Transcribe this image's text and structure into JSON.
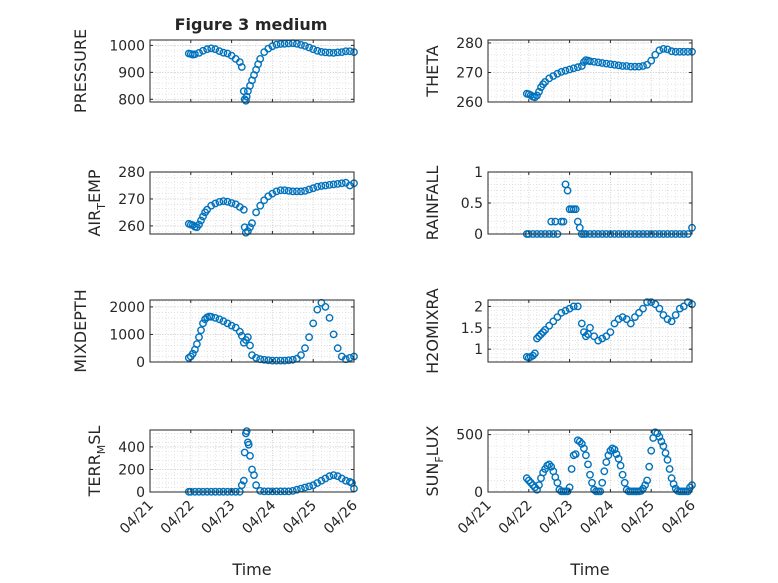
{
  "figure": {
    "title": "Figure 3 medium",
    "shared_xlabel": "Time",
    "marker_color": "#0072BD",
    "grid_color": "#d9d9d9"
  },
  "chart_data": [
    {
      "type": "scatter",
      "ylabel": "PRESSURE",
      "ylabel_sub": "",
      "ylabel_tail": "",
      "title": "Figure 3 medium",
      "xlabel": "",
      "grid": true,
      "ylim": [
        790,
        1020
      ],
      "yticks": [
        800,
        900,
        1000
      ],
      "xlim": [
        0,
        5
      ],
      "xticks": [
        0,
        1,
        2,
        3,
        4,
        5
      ],
      "xticklabels": [],
      "x": [
        0.95,
        1.0,
        1.05,
        1.1,
        1.2,
        1.3,
        1.4,
        1.5,
        1.6,
        1.7,
        1.8,
        1.9,
        2.0,
        2.1,
        2.2,
        2.25,
        2.3,
        2.32,
        2.35,
        2.37,
        2.4,
        2.45,
        2.5,
        2.55,
        2.6,
        2.65,
        2.7,
        2.8,
        2.9,
        3.0,
        3.1,
        3.2,
        3.3,
        3.4,
        3.5,
        3.6,
        3.7,
        3.8,
        3.9,
        4.0,
        4.1,
        4.2,
        4.3,
        4.4,
        4.5,
        4.6,
        4.7,
        4.8,
        4.9,
        5.0
      ],
      "y": [
        970,
        968,
        966,
        967,
        972,
        980,
        986,
        989,
        986,
        979,
        973,
        970,
        962,
        950,
        938,
        920,
        830,
        800,
        795,
        810,
        830,
        850,
        870,
        890,
        910,
        930,
        950,
        975,
        988,
        997,
        1003,
        1005,
        1006,
        1007,
        1008,
        1006,
        1002,
        998,
        992,
        986,
        980,
        976,
        974,
        973,
        972,
        974,
        975,
        978,
        978,
        975
      ]
    },
    {
      "type": "scatter",
      "ylabel": "THETA",
      "ylabel_sub": "",
      "ylabel_tail": "",
      "title": "",
      "xlabel": "",
      "grid": true,
      "ylim": [
        260,
        281
      ],
      "yticks": [
        260,
        270,
        280
      ],
      "xlim": [
        0,
        5
      ],
      "xticks": [
        0,
        1,
        2,
        3,
        4,
        5
      ],
      "xticklabels": [],
      "x": [
        0.95,
        1.0,
        1.05,
        1.1,
        1.15,
        1.2,
        1.25,
        1.3,
        1.35,
        1.4,
        1.5,
        1.6,
        1.7,
        1.8,
        1.9,
        2.0,
        2.1,
        2.2,
        2.3,
        2.35,
        2.4,
        2.45,
        2.5,
        2.6,
        2.7,
        2.8,
        2.9,
        3.0,
        3.1,
        3.2,
        3.3,
        3.4,
        3.5,
        3.6,
        3.7,
        3.8,
        3.9,
        4.0,
        4.1,
        4.2,
        4.3,
        4.4,
        4.5,
        4.6,
        4.7,
        4.8,
        4.9,
        5.0
      ],
      "y": [
        262.8,
        262.6,
        262.3,
        261.8,
        261.6,
        262.2,
        263.5,
        265.0,
        266.0,
        266.8,
        268.0,
        268.8,
        269.6,
        270.2,
        270.6,
        271.0,
        271.4,
        271.8,
        272.2,
        273.5,
        274.2,
        274.0,
        273.8,
        273.6,
        273.4,
        273.2,
        273.0,
        272.8,
        272.6,
        272.4,
        272.2,
        272.2,
        272.0,
        272.0,
        272.0,
        272.2,
        272.6,
        274.0,
        276.0,
        277.5,
        278.0,
        277.8,
        277.2,
        277.0,
        277.0,
        277.0,
        277.0,
        277.0
      ]
    },
    {
      "type": "scatter",
      "ylabel": "AIR",
      "ylabel_sub": "T",
      "ylabel_tail": "EMP",
      "title": "",
      "xlabel": "",
      "grid": true,
      "ylim": [
        257,
        280
      ],
      "yticks": [
        260,
        270,
        280
      ],
      "xlim": [
        0,
        5
      ],
      "xticks": [
        0,
        1,
        2,
        3,
        4,
        5
      ],
      "xticklabels": [],
      "x": [
        0.95,
        1.0,
        1.05,
        1.1,
        1.15,
        1.2,
        1.25,
        1.3,
        1.35,
        1.4,
        1.5,
        1.6,
        1.7,
        1.8,
        1.9,
        2.0,
        2.1,
        2.2,
        2.3,
        2.32,
        2.35,
        2.4,
        2.45,
        2.5,
        2.6,
        2.7,
        2.8,
        2.9,
        3.0,
        3.1,
        3.2,
        3.3,
        3.4,
        3.5,
        3.6,
        3.7,
        3.8,
        3.9,
        4.0,
        4.1,
        4.2,
        4.3,
        4.4,
        4.5,
        4.6,
        4.7,
        4.8,
        4.9,
        5.0
      ],
      "y": [
        260.8,
        260.5,
        260.3,
        259.7,
        259.5,
        260.5,
        262.0,
        263.5,
        265.0,
        266.0,
        267.5,
        268.3,
        268.9,
        269.2,
        269.0,
        268.5,
        268.0,
        267.0,
        266.0,
        259.5,
        257.5,
        258.0,
        259.5,
        261.0,
        265.0,
        267.5,
        269.5,
        271.0,
        272.0,
        272.8,
        273.2,
        273.2,
        273.0,
        272.8,
        272.8,
        272.8,
        273.0,
        273.5,
        274.0,
        274.5,
        274.8,
        275.0,
        275.2,
        275.4,
        275.6,
        275.8,
        276.0,
        275.0,
        275.8
      ]
    },
    {
      "type": "scatter",
      "ylabel": "RAINFALL",
      "ylabel_sub": "",
      "ylabel_tail": "",
      "title": "",
      "xlabel": "",
      "grid": true,
      "ylim": [
        0,
        1
      ],
      "yticks": [
        0,
        0.5,
        1
      ],
      "xlim": [
        0,
        5
      ],
      "xticks": [
        0,
        1,
        2,
        3,
        4,
        5
      ],
      "xticklabels": [],
      "x": [
        0.95,
        1.0,
        1.1,
        1.2,
        1.3,
        1.4,
        1.5,
        1.55,
        1.6,
        1.65,
        1.7,
        1.8,
        1.85,
        1.9,
        1.95,
        2.0,
        2.05,
        2.1,
        2.15,
        2.2,
        2.25,
        2.3,
        2.35,
        2.4,
        2.5,
        2.6,
        2.7,
        2.8,
        2.9,
        3.0,
        3.1,
        3.2,
        3.3,
        3.4,
        3.5,
        3.6,
        3.7,
        3.8,
        3.9,
        4.0,
        4.1,
        4.2,
        4.3,
        4.4,
        4.5,
        4.6,
        4.7,
        4.8,
        4.9,
        5.0
      ],
      "y": [
        0,
        0,
        0,
        0,
        0,
        0,
        0,
        0.2,
        0,
        0.2,
        0,
        0.2,
        0.2,
        0.8,
        0.7,
        0.4,
        0.4,
        0.4,
        0.4,
        0.2,
        0.1,
        0,
        0,
        0,
        0,
        0,
        0,
        0,
        0,
        0,
        0,
        0,
        0,
        0,
        0,
        0,
        0,
        0,
        0,
        0,
        0,
        0,
        0,
        0,
        0,
        0,
        0,
        0,
        0,
        0.1
      ]
    },
    {
      "type": "scatter",
      "ylabel": "MIXDEPTH",
      "ylabel_sub": "",
      "ylabel_tail": "",
      "title": "",
      "xlabel": "",
      "grid": true,
      "ylim": [
        0,
        2250
      ],
      "yticks": [
        0,
        1000,
        2000
      ],
      "xlim": [
        0,
        5
      ],
      "xticks": [
        0,
        1,
        2,
        3,
        4,
        5
      ],
      "xticklabels": [],
      "x": [
        0.95,
        1.0,
        1.05,
        1.1,
        1.15,
        1.2,
        1.25,
        1.3,
        1.35,
        1.4,
        1.45,
        1.5,
        1.6,
        1.7,
        1.8,
        1.9,
        2.0,
        2.1,
        2.2,
        2.25,
        2.3,
        2.35,
        2.4,
        2.45,
        2.5,
        2.6,
        2.7,
        2.8,
        2.9,
        3.0,
        3.1,
        3.2,
        3.3,
        3.4,
        3.5,
        3.6,
        3.7,
        3.8,
        3.9,
        4.0,
        4.1,
        4.2,
        4.3,
        4.4,
        4.5,
        4.6,
        4.7,
        4.8,
        4.9,
        5.0
      ],
      "y": [
        150,
        200,
        300,
        450,
        650,
        900,
        1150,
        1400,
        1550,
        1620,
        1650,
        1640,
        1600,
        1550,
        1480,
        1400,
        1320,
        1250,
        1100,
        950,
        700,
        800,
        900,
        600,
        250,
        150,
        100,
        80,
        60,
        50,
        50,
        50,
        50,
        60,
        80,
        120,
        250,
        500,
        900,
        1400,
        1900,
        2150,
        2000,
        1600,
        1000,
        500,
        200,
        100,
        150,
        200
      ]
    },
    {
      "type": "scatter",
      "ylabel": "H2OMIXRA",
      "ylabel_sub": "",
      "ylabel_tail": "",
      "title": "",
      "xlabel": "",
      "grid": true,
      "ylim": [
        0.7,
        2.15
      ],
      "yticks": [
        1,
        1.5,
        2
      ],
      "xlim": [
        0,
        5
      ],
      "xticks": [
        0,
        1,
        2,
        3,
        4,
        5
      ],
      "xticklabels": [],
      "x": [
        0.95,
        1.0,
        1.05,
        1.1,
        1.15,
        1.2,
        1.25,
        1.3,
        1.35,
        1.4,
        1.5,
        1.6,
        1.7,
        1.8,
        1.9,
        2.0,
        2.1,
        2.2,
        2.3,
        2.35,
        2.4,
        2.45,
        2.5,
        2.6,
        2.7,
        2.8,
        2.9,
        3.0,
        3.1,
        3.2,
        3.3,
        3.4,
        3.5,
        3.6,
        3.7,
        3.8,
        3.9,
        4.0,
        4.1,
        4.2,
        4.3,
        4.4,
        4.5,
        4.6,
        4.7,
        4.8,
        4.9,
        5.0
      ],
      "y": [
        0.82,
        0.8,
        0.82,
        0.85,
        0.9,
        1.25,
        1.3,
        1.35,
        1.4,
        1.45,
        1.55,
        1.65,
        1.75,
        1.85,
        1.9,
        1.95,
        2.0,
        2.0,
        1.6,
        1.4,
        1.3,
        1.35,
        1.5,
        1.3,
        1.2,
        1.25,
        1.3,
        1.4,
        1.6,
        1.7,
        1.75,
        1.7,
        1.6,
        1.75,
        1.85,
        1.95,
        2.1,
        2.1,
        2.05,
        1.95,
        1.8,
        1.7,
        1.65,
        1.8,
        1.95,
        2.0,
        2.1,
        2.05
      ]
    },
    {
      "type": "scatter",
      "ylabel": "TERR",
      "ylabel_sub": "M",
      "ylabel_tail": "SL",
      "title": "",
      "xlabel": "Time",
      "grid": true,
      "ylim": [
        0,
        550
      ],
      "yticks": [
        0,
        200,
        400
      ],
      "xlim": [
        0,
        5
      ],
      "xticks": [
        0,
        1,
        2,
        3,
        4,
        5
      ],
      "xticklabels": [
        "04/21",
        "04/22",
        "04/23",
        "04/24",
        "04/25",
        "04/26"
      ],
      "x": [
        0.95,
        1.0,
        1.1,
        1.2,
        1.3,
        1.4,
        1.5,
        1.6,
        1.7,
        1.8,
        1.9,
        2.0,
        2.1,
        2.2,
        2.25,
        2.3,
        2.32,
        2.35,
        2.37,
        2.4,
        2.42,
        2.45,
        2.5,
        2.55,
        2.6,
        2.7,
        2.8,
        2.9,
        3.0,
        3.1,
        3.2,
        3.3,
        3.4,
        3.5,
        3.6,
        3.7,
        3.8,
        3.9,
        4.0,
        4.1,
        4.2,
        4.3,
        4.4,
        4.5,
        4.6,
        4.7,
        4.8,
        4.9,
        4.95,
        5.0
      ],
      "y": [
        2,
        2,
        2,
        2,
        2,
        2,
        2,
        2,
        2,
        2,
        2,
        2,
        2,
        2,
        60,
        100,
        350,
        520,
        540,
        440,
        420,
        320,
        200,
        150,
        60,
        10,
        5,
        5,
        5,
        5,
        5,
        5,
        5,
        10,
        20,
        30,
        40,
        50,
        60,
        80,
        100,
        120,
        140,
        150,
        140,
        120,
        100,
        90,
        80,
        30
      ]
    },
    {
      "type": "scatter",
      "ylabel": "SUN",
      "ylabel_sub": "F",
      "ylabel_tail": "LUX",
      "title": "",
      "xlabel": "Time",
      "grid": true,
      "ylim": [
        0,
        540
      ],
      "yticks": [
        0,
        500
      ],
      "xlim": [
        0,
        5
      ],
      "xticks": [
        0,
        1,
        2,
        3,
        4,
        5
      ],
      "xticklabels": [
        "04/21",
        "04/22",
        "04/23",
        "04/24",
        "04/25",
        "04/26"
      ],
      "x": [
        0.95,
        1.0,
        1.05,
        1.1,
        1.15,
        1.2,
        1.25,
        1.3,
        1.35,
        1.4,
        1.45,
        1.5,
        1.55,
        1.6,
        1.65,
        1.7,
        1.75,
        1.8,
        1.85,
        1.9,
        1.95,
        2.0,
        2.05,
        2.1,
        2.15,
        2.2,
        2.25,
        2.3,
        2.35,
        2.4,
        2.45,
        2.5,
        2.55,
        2.6,
        2.65,
        2.7,
        2.75,
        2.8,
        2.85,
        2.9,
        2.95,
        3.0,
        3.05,
        3.1,
        3.15,
        3.2,
        3.25,
        3.3,
        3.35,
        3.4,
        3.45,
        3.5,
        3.55,
        3.6,
        3.65,
        3.7,
        3.75,
        3.8,
        3.85,
        3.9,
        3.95,
        4.0,
        4.05,
        4.1,
        4.15,
        4.2,
        4.25,
        4.3,
        4.35,
        4.4,
        4.45,
        4.5,
        4.55,
        4.6,
        4.65,
        4.7,
        4.75,
        4.8,
        4.85,
        4.9,
        4.95,
        5.0
      ],
      "y": [
        120,
        100,
        80,
        60,
        40,
        20,
        60,
        120,
        170,
        200,
        230,
        240,
        220,
        180,
        130,
        80,
        20,
        5,
        5,
        5,
        5,
        40,
        200,
        320,
        330,
        450,
        440,
        420,
        380,
        320,
        240,
        150,
        80,
        20,
        5,
        5,
        5,
        80,
        180,
        260,
        320,
        360,
        380,
        370,
        330,
        290,
        230,
        150,
        80,
        20,
        5,
        5,
        5,
        5,
        5,
        5,
        10,
        30,
        60,
        100,
        220,
        360,
        470,
        520,
        510,
        480,
        440,
        400,
        340,
        280,
        200,
        120,
        70,
        30,
        10,
        5,
        5,
        5,
        5,
        5,
        40,
        60
      ]
    }
  ]
}
